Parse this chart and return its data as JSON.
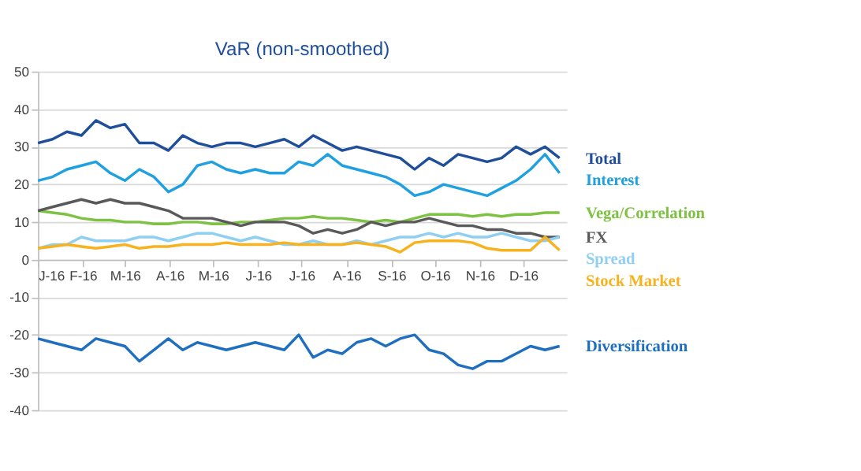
{
  "chart_data": {
    "type": "line",
    "title": "VaR (non-smoothed)",
    "x": [
      "2016-01-01",
      "2016-01-11",
      "2016-01-21",
      "2016-01-31",
      "2016-02-10",
      "2016-02-20",
      "2016-03-01",
      "2016-03-11",
      "2016-03-21",
      "2016-03-31",
      "2016-04-10",
      "2016-04-20",
      "2016-04-30",
      "2016-05-10",
      "2016-05-20",
      "2016-05-30",
      "2016-06-09",
      "2016-06-19",
      "2016-06-29",
      "2016-07-09",
      "2016-07-19",
      "2016-07-29",
      "2016-08-08",
      "2016-08-18",
      "2016-08-28",
      "2016-09-07",
      "2016-09-17",
      "2016-09-27",
      "2016-10-07",
      "2016-10-17",
      "2016-10-27",
      "2016-11-06",
      "2016-11-16",
      "2016-11-26",
      "2016-12-06",
      "2016-12-16",
      "2016-12-26"
    ],
    "series": [
      {
        "name": "Total",
        "color": "#1f4e9a",
        "values": [
          31,
          32,
          34,
          33,
          37,
          35,
          36,
          31,
          31,
          29,
          33,
          31,
          30,
          31,
          31,
          30,
          31,
          32,
          30,
          33,
          31,
          29,
          30,
          29,
          28,
          27,
          24,
          27,
          25,
          28,
          27,
          26,
          27,
          30,
          28,
          30,
          27
        ]
      },
      {
        "name": "Interest",
        "color": "#1fa0e0",
        "values": [
          21,
          22,
          24,
          25,
          26,
          23,
          21,
          24,
          22,
          18,
          20,
          25,
          26,
          24,
          23,
          24,
          23,
          23,
          26,
          25,
          28,
          25,
          24,
          23,
          22,
          20,
          17,
          18,
          20,
          19,
          18,
          17,
          19,
          21,
          24,
          28,
          23
        ]
      },
      {
        "name": "Vega/Correlation",
        "color": "#7dc242",
        "values": [
          13,
          12.5,
          12,
          11,
          10.5,
          10.5,
          10,
          10,
          9.5,
          9.5,
          10,
          10,
          9.5,
          9.5,
          10,
          10,
          10.5,
          11,
          11,
          11.5,
          11,
          11,
          10.5,
          10,
          10.5,
          10,
          11,
          12,
          12,
          12,
          11.5,
          12,
          11.5,
          12,
          12,
          12.5,
          12.5
        ]
      },
      {
        "name": "FX",
        "color": "#595959",
        "values": [
          13,
          14,
          15,
          16,
          15,
          16,
          15,
          15,
          14,
          13,
          11,
          11,
          11,
          10,
          9,
          10,
          10,
          10,
          9,
          7,
          8,
          7,
          8,
          10,
          9,
          10,
          10,
          11,
          10,
          9,
          9,
          8,
          8,
          7,
          7,
          6,
          6
        ]
      },
      {
        "name": "Spread",
        "color": "#8fd0f2",
        "values": [
          3,
          4,
          4,
          6,
          5,
          5,
          5,
          6,
          6,
          5,
          6,
          7,
          7,
          6,
          5,
          6,
          5,
          4,
          4,
          5,
          4,
          4,
          5,
          4,
          5,
          6,
          6,
          7,
          6,
          7,
          6,
          6,
          7,
          6,
          5,
          5,
          6
        ]
      },
      {
        "name": "Stock Market",
        "color": "#f7b21d",
        "values": [
          3,
          3.5,
          4,
          3.5,
          3,
          3.5,
          4,
          3,
          3.5,
          3.5,
          4,
          4,
          4,
          4.5,
          4,
          4,
          4,
          4.5,
          4,
          4,
          4,
          4,
          4.5,
          4,
          3.5,
          2,
          4.5,
          5,
          5,
          5,
          4.5,
          3,
          2.5,
          2.5,
          2.5,
          6,
          2.5
        ]
      },
      {
        "name": "Diversification",
        "color": "#1f6fc0",
        "values": [
          -21,
          -22,
          -23,
          -24,
          -21,
          -22,
          -23,
          -27,
          -24,
          -21,
          -24,
          -22,
          -23,
          -24,
          -23,
          -22,
          -23,
          -24,
          -20,
          -26,
          -24,
          -25,
          -22,
          -21,
          -23,
          -21,
          -20,
          -24,
          -25,
          -28,
          -29,
          -27,
          -27,
          -25,
          -23,
          -24,
          -23
        ]
      }
    ],
    "ylim": [
      -40,
      50
    ],
    "yticks": [
      -40,
      -30,
      -20,
      -10,
      0,
      10,
      20,
      30,
      40,
      50
    ],
    "xlim": [
      "2016-01-01",
      "2016-12-31"
    ],
    "xticks": [
      {
        "value": "2016-01-01",
        "label": "J-16"
      },
      {
        "value": "2016-02-01",
        "label": "F-16"
      },
      {
        "value": "2016-03-01",
        "label": "M-16"
      },
      {
        "value": "2016-04-01",
        "label": "A-16"
      },
      {
        "value": "2016-05-01",
        "label": "M-16"
      },
      {
        "value": "2016-06-01",
        "label": "J-16"
      },
      {
        "value": "2016-07-01",
        "label": "J-16"
      },
      {
        "value": "2016-08-01",
        "label": "A-16"
      },
      {
        "value": "2016-09-01",
        "label": "S-16"
      },
      {
        "value": "2016-10-01",
        "label": "O-16"
      },
      {
        "value": "2016-11-01",
        "label": "N-16"
      },
      {
        "value": "2016-12-01",
        "label": "D-16"
      }
    ],
    "grid": "y",
    "marker": "none",
    "line_style": "solid"
  }
}
